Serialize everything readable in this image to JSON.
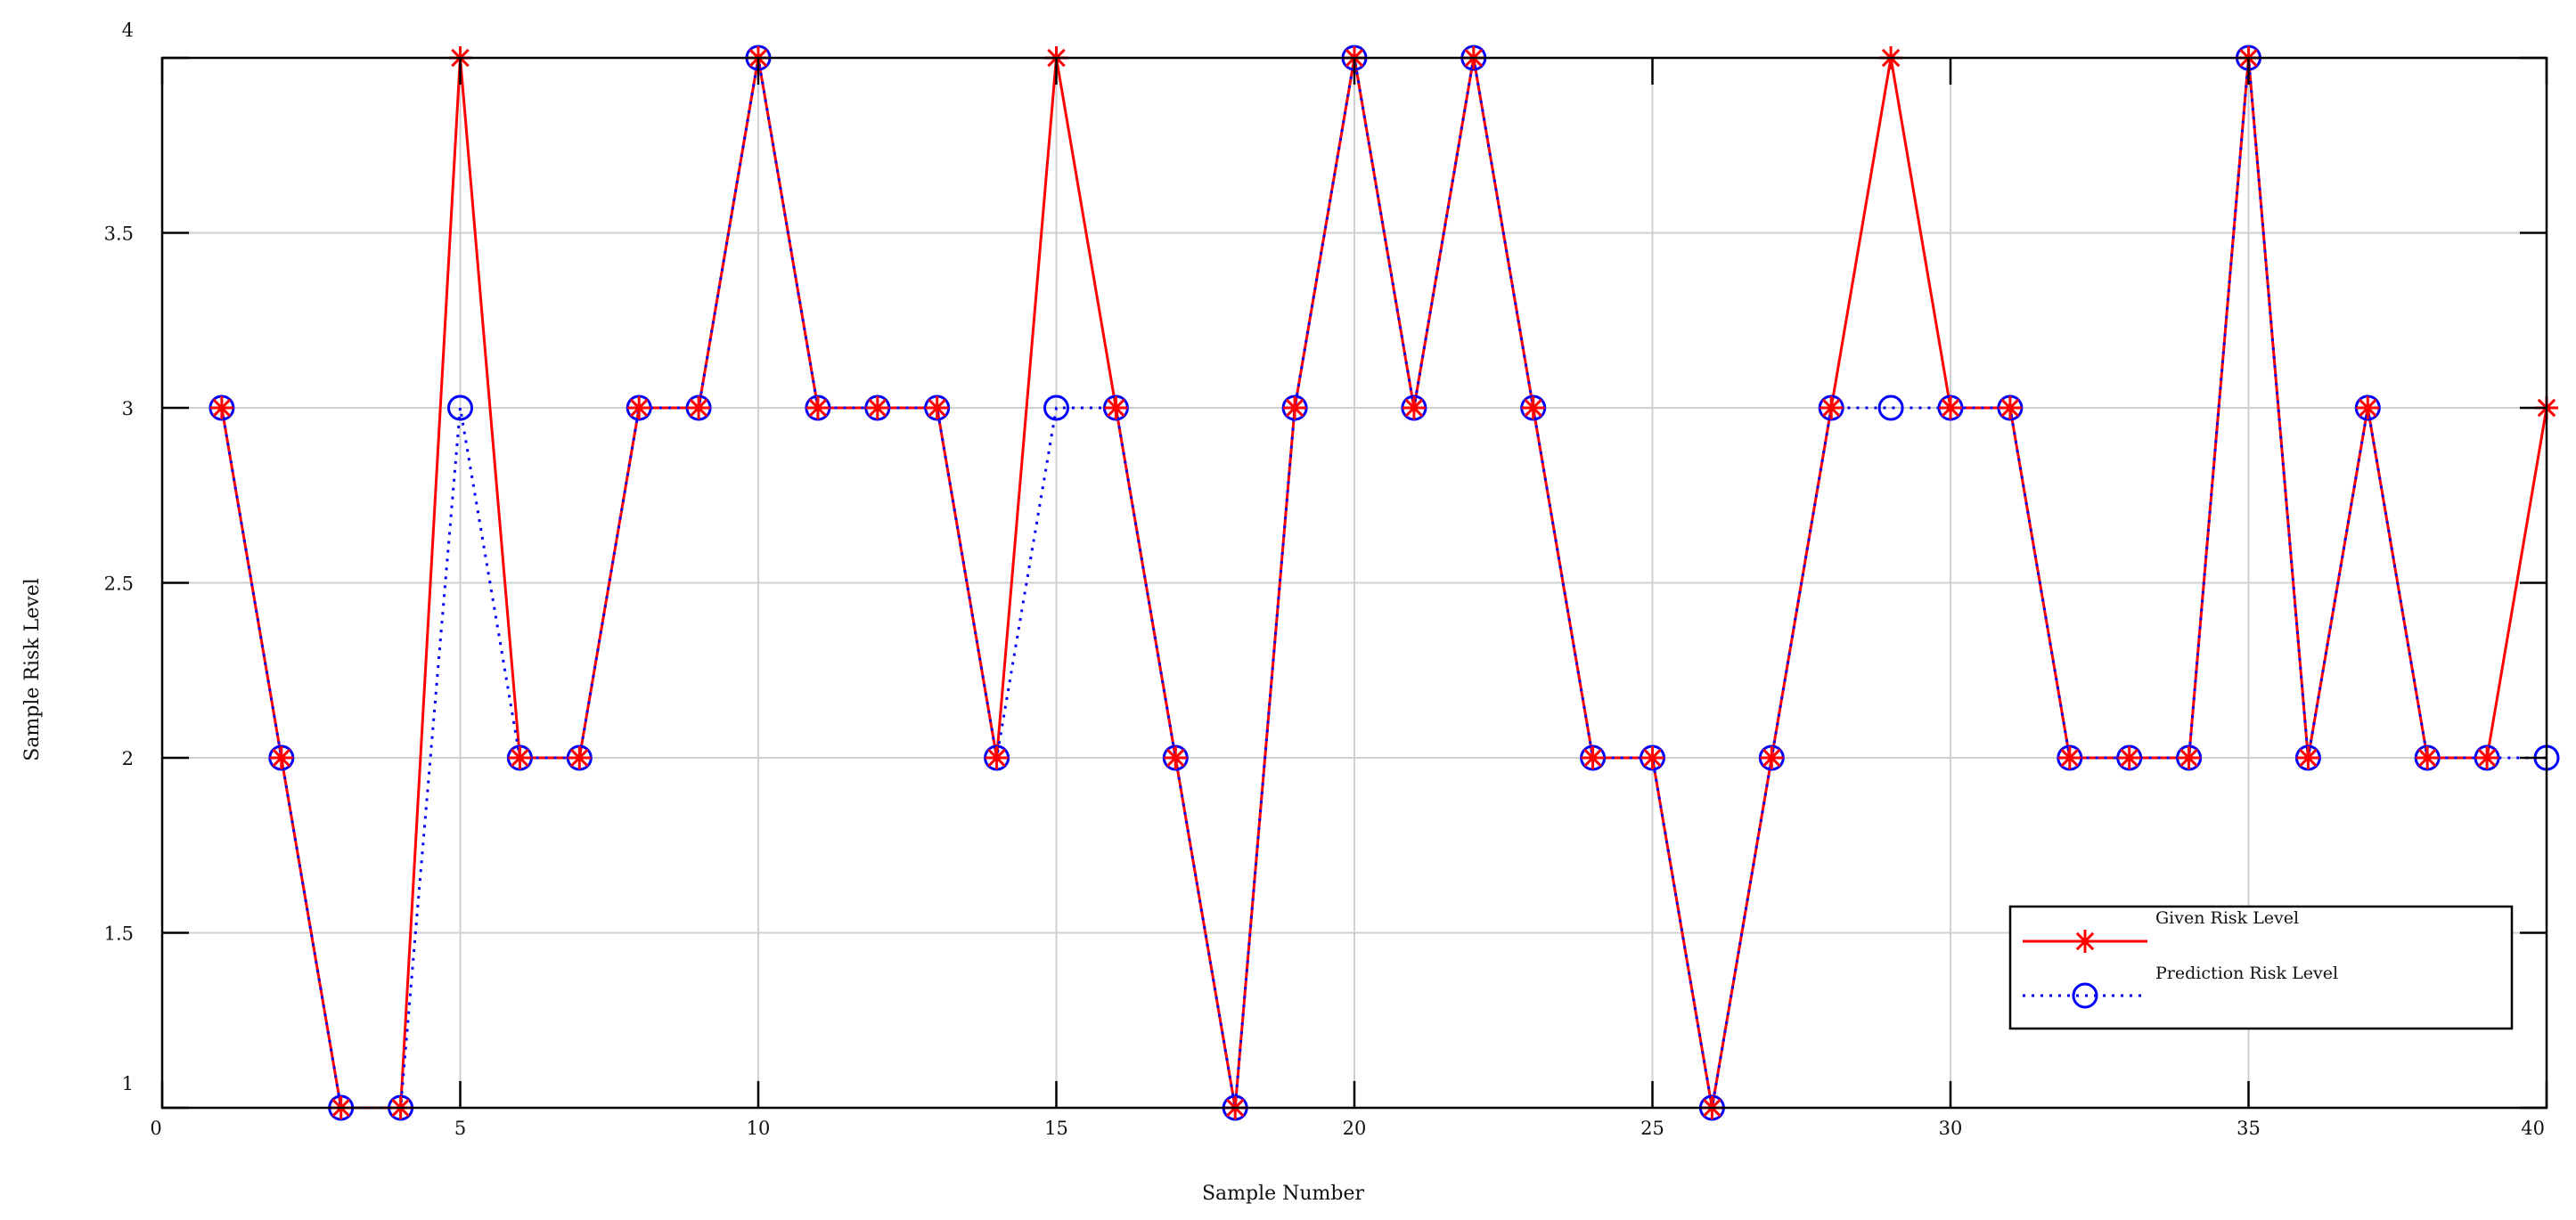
{
  "chart_data": {
    "type": "line",
    "title": "",
    "xlabel": "Sample Number",
    "ylabel": "Sample Risk Level",
    "xlim": [
      0,
      40
    ],
    "ylim": [
      1,
      4
    ],
    "xticks": [
      0,
      5,
      10,
      15,
      20,
      25,
      30,
      35,
      40
    ],
    "xtick_labels": [
      "0",
      "5",
      "10",
      "15",
      "20",
      "25",
      "30",
      "35",
      "40"
    ],
    "yticks": [
      1,
      1.5,
      2,
      2.5,
      3,
      3.5,
      4
    ],
    "ytick_labels": [
      "1",
      "1.5",
      "2",
      "2.5",
      "3",
      "3.5",
      "4"
    ],
    "grid": true,
    "legend_position": "bottom-right",
    "x": [
      1,
      2,
      3,
      4,
      5,
      6,
      7,
      8,
      9,
      10,
      11,
      12,
      13,
      14,
      15,
      16,
      17,
      18,
      19,
      20,
      21,
      22,
      23,
      24,
      25,
      26,
      27,
      28,
      29,
      30,
      31,
      32,
      33,
      34,
      35,
      36,
      37,
      38,
      39,
      40
    ],
    "series": [
      {
        "name": "Given Risk Level",
        "color": "#ff0000",
        "line_style": "solid",
        "marker": "asterisk",
        "values": [
          3,
          2,
          1,
          1,
          4,
          2,
          2,
          3,
          3,
          4,
          3,
          3,
          3,
          2,
          4,
          3,
          2,
          1,
          3,
          4,
          3,
          4,
          3,
          2,
          2,
          1,
          2,
          3,
          4,
          3,
          3,
          2,
          2,
          2,
          4,
          2,
          3,
          2,
          2,
          3
        ]
      },
      {
        "name": "Prediction Risk Level",
        "color": "#0000ff",
        "line_style": "dotted",
        "marker": "circle",
        "values": [
          3,
          2,
          1,
          1,
          3,
          2,
          2,
          3,
          3,
          4,
          3,
          3,
          3,
          2,
          3,
          3,
          2,
          1,
          3,
          4,
          3,
          4,
          3,
          2,
          2,
          1,
          2,
          3,
          3,
          3,
          3,
          2,
          2,
          2,
          4,
          2,
          3,
          2,
          2,
          2
        ]
      }
    ]
  }
}
